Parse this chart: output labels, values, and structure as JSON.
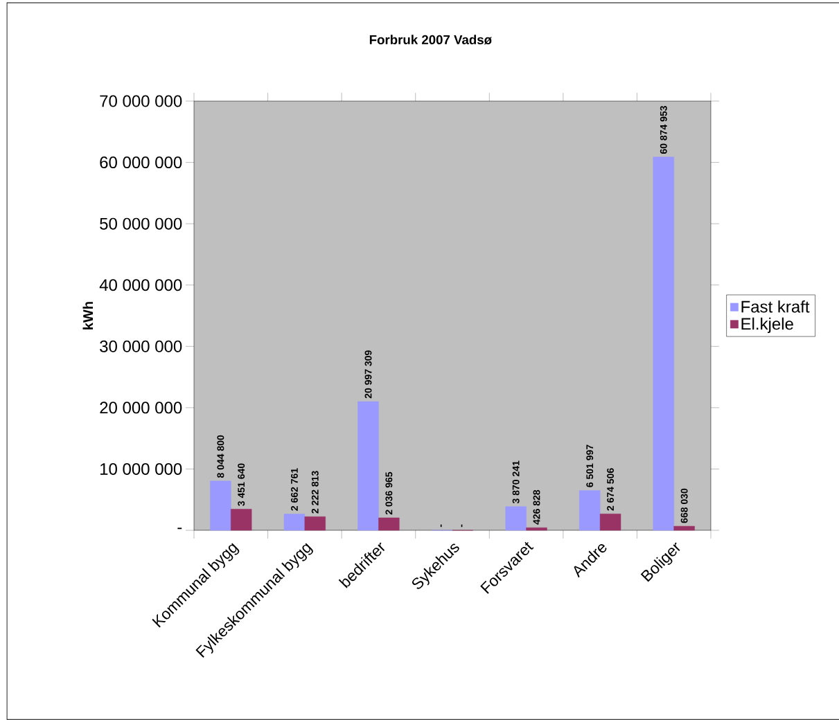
{
  "chart_data": {
    "type": "bar",
    "title": "Forbruk 2007 Vadsø",
    "ylabel": "kWh",
    "categories": [
      "Kommunal bygg",
      "Fylkeskommunal bygg",
      "bedrifter",
      "Sykehus",
      "Forsvaret",
      "Andre",
      "Boliger"
    ],
    "series": [
      {
        "name": "Fast kraft",
        "color": "#9999ff",
        "values": [
          8044800,
          2662761,
          20997309,
          0,
          3870241,
          6501997,
          60874953
        ],
        "value_labels": [
          "8 044 800",
          "2 662 761",
          "20 997 309",
          "-",
          "3 870 241",
          "6 501 997",
          "60 874 953"
        ]
      },
      {
        "name": "El.kjele",
        "color": "#993366",
        "values": [
          3451640,
          2222813,
          2036965,
          0,
          426828,
          2674506,
          668030
        ],
        "value_labels": [
          "3 451 640",
          "2 222 813",
          "2 036 965",
          "-",
          "426 828",
          "2 674 506",
          "668 030"
        ]
      }
    ],
    "ylim": [
      0,
      70000000
    ],
    "yticks": [
      {
        "value": 0,
        "label": "-"
      },
      {
        "value": 10000000,
        "label": "10 000 000"
      },
      {
        "value": 20000000,
        "label": "20 000 000"
      },
      {
        "value": 30000000,
        "label": "30 000 000"
      },
      {
        "value": 40000000,
        "label": "40 000 000"
      },
      {
        "value": 50000000,
        "label": "50 000 000"
      },
      {
        "value": 60000000,
        "label": "60 000 000"
      },
      {
        "value": 70000000,
        "label": "70 000 000"
      }
    ],
    "legend": "right"
  }
}
